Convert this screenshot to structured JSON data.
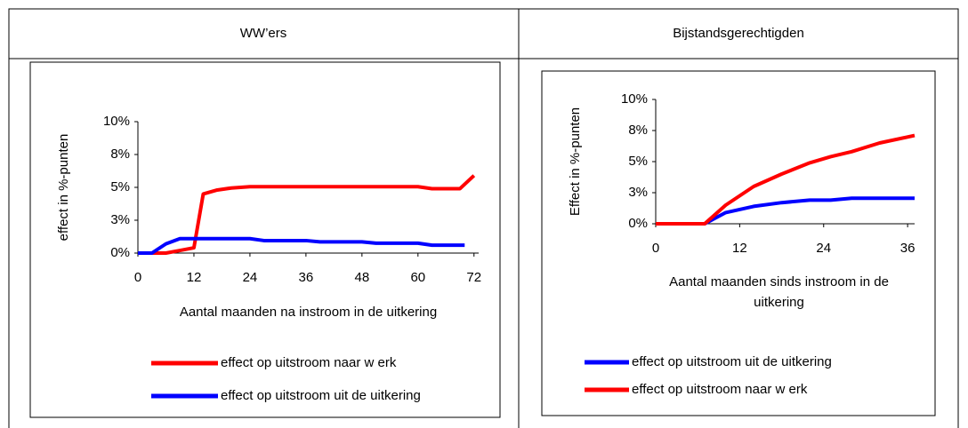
{
  "table": {
    "headers": [
      "WW’ers",
      "Bijstandsgerechtigden"
    ]
  },
  "chart_data": [
    {
      "type": "line",
      "ylabel": "effect in %-punten",
      "xlabel": "Aantal maanden na instroom in de uitkering",
      "xlim": [
        0,
        73
      ],
      "xticks": [
        0,
        12,
        24,
        36,
        48,
        60,
        72
      ],
      "ylim": [
        0,
        10
      ],
      "yticks": [
        {
          "value": 0,
          "label": "0%"
        },
        {
          "value": 2.5,
          "label": "3%"
        },
        {
          "value": 5,
          "label": "5%"
        },
        {
          "value": 7.5,
          "label": "8%"
        },
        {
          "value": 10,
          "label": "10%"
        }
      ],
      "series": [
        {
          "name": "effect op uitstroom naar w erk",
          "color": "#ff0000",
          "x": [
            0,
            3,
            6,
            9,
            12,
            14,
            17,
            20,
            24,
            30,
            36,
            42,
            48,
            54,
            60,
            63,
            66,
            69,
            72
          ],
          "values": [
            0,
            0,
            0,
            0.2,
            0.4,
            4.5,
            4.8,
            4.95,
            5.05,
            5.05,
            5.05,
            5.05,
            5.05,
            5.05,
            5.05,
            4.9,
            4.9,
            4.9,
            5.9
          ]
        },
        {
          "name": "effect op uitstroom uit de uitkering",
          "color": "#0000ff",
          "x": [
            0,
            3,
            6,
            9,
            12,
            18,
            24,
            27,
            36,
            39,
            48,
            51,
            60,
            63,
            70
          ],
          "values": [
            0,
            0,
            0.7,
            1.1,
            1.1,
            1.1,
            1.1,
            0.95,
            0.95,
            0.85,
            0.85,
            0.75,
            0.75,
            0.6,
            0.6
          ]
        }
      ]
    },
    {
      "type": "line",
      "ylabel": "Effect in %-punten",
      "xlabel": "Aantal maanden sinds instroom in de uitkering",
      "xlim": [
        0,
        37
      ],
      "xticks": [
        0,
        12,
        24,
        36
      ],
      "ylim": [
        0,
        10
      ],
      "yticks": [
        {
          "value": 0,
          "label": "0%"
        },
        {
          "value": 2.5,
          "label": "3%"
        },
        {
          "value": 5,
          "label": "5%"
        },
        {
          "value": 7.5,
          "label": "8%"
        },
        {
          "value": 10,
          "label": "10%"
        }
      ],
      "series": [
        {
          "name": "effect op uitstroom uit de uitkering",
          "color": "#0000ff",
          "x": [
            0,
            3,
            7,
            10,
            14,
            18,
            22,
            25,
            28,
            32,
            37
          ],
          "values": [
            0,
            0,
            0,
            0.9,
            1.4,
            1.7,
            1.9,
            1.9,
            2.05,
            2.05,
            2.05
          ]
        },
        {
          "name": "effect op uitstroom naar w erk",
          "color": "#ff0000",
          "x": [
            0,
            3,
            7,
            10,
            14,
            18,
            22,
            25,
            28,
            32,
            37
          ],
          "values": [
            0,
            0,
            0,
            1.5,
            3.0,
            4.0,
            4.9,
            5.4,
            5.8,
            6.5,
            7.1
          ]
        }
      ]
    }
  ]
}
